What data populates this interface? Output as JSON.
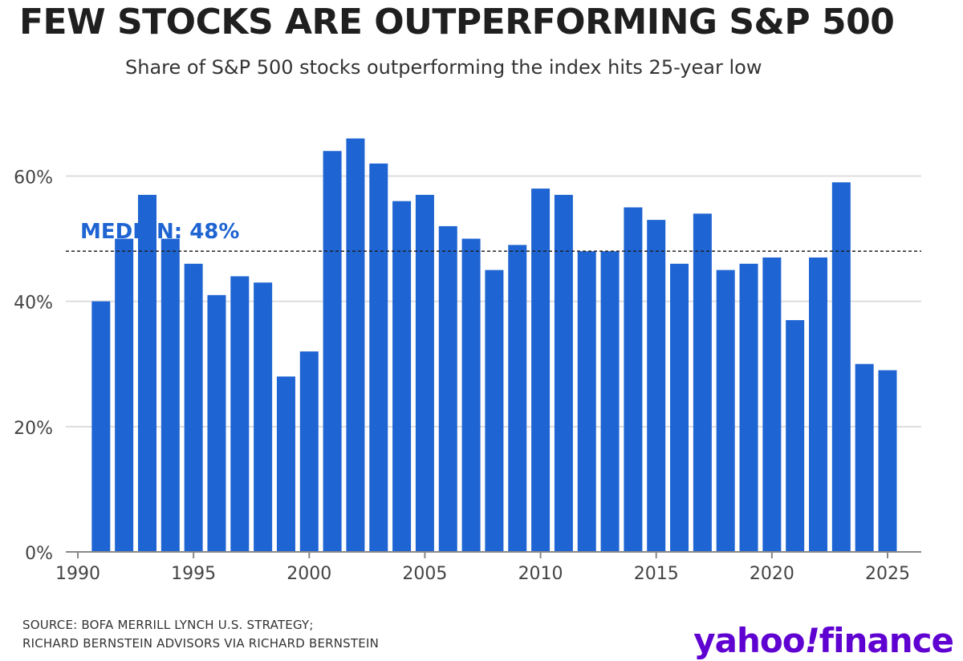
{
  "header": {
    "title": "FEW STOCKS ARE OUTPERFORMING S&P 500",
    "subtitle": "Share of S&P 500 stocks outperforming the index hits 25-year low"
  },
  "footer": {
    "source_line1": "SOURCE: BOFA MERRILL LYNCH U.S. STRATEGY;",
    "source_line2": "RICHARD BERNSTEIN ADVISORS VIA RICHARD BERNSTEIN",
    "logo_text_a": "yahoo",
    "logo_text_b": "!",
    "logo_text_c": "finance"
  },
  "colors": {
    "bar": "#1e64d2",
    "median_label": "#1e64d2",
    "grid": "#dddddd",
    "axis": "#888888",
    "logo": "#5f01d1"
  },
  "chart_data": {
    "type": "bar",
    "x": [
      1991,
      1992,
      1993,
      1994,
      1995,
      1996,
      1997,
      1998,
      1999,
      2000,
      2001,
      2002,
      2003,
      2004,
      2005,
      2006,
      2007,
      2008,
      2009,
      2010,
      2011,
      2012,
      2013,
      2014,
      2015,
      2016,
      2017,
      2018,
      2019,
      2020,
      2021,
      2022,
      2023,
      2024,
      2025
    ],
    "values": [
      40,
      50,
      57,
      50,
      46,
      41,
      44,
      43,
      28,
      32,
      64,
      66,
      62,
      56,
      57,
      52,
      50,
      45,
      49,
      58,
      57,
      48,
      48,
      55,
      53,
      46,
      54,
      45,
      46,
      47,
      37,
      47,
      59,
      30,
      29
    ],
    "xlim": [
      1990,
      2026
    ],
    "ylim": [
      0,
      68
    ],
    "y_ticks": [
      0,
      20,
      40,
      60
    ],
    "y_tick_labels": [
      "0%",
      "20%",
      "40%",
      "60%"
    ],
    "x_ticks": [
      1990,
      1995,
      2000,
      2005,
      2010,
      2015,
      2020,
      2025
    ],
    "x_tick_labels": [
      "1990",
      "1995",
      "2000",
      "2005",
      "2010",
      "2015",
      "2020",
      "2025"
    ],
    "grid": true,
    "median": {
      "value": 48,
      "label": "MEDIAN: 48%",
      "style": "dashed"
    }
  }
}
